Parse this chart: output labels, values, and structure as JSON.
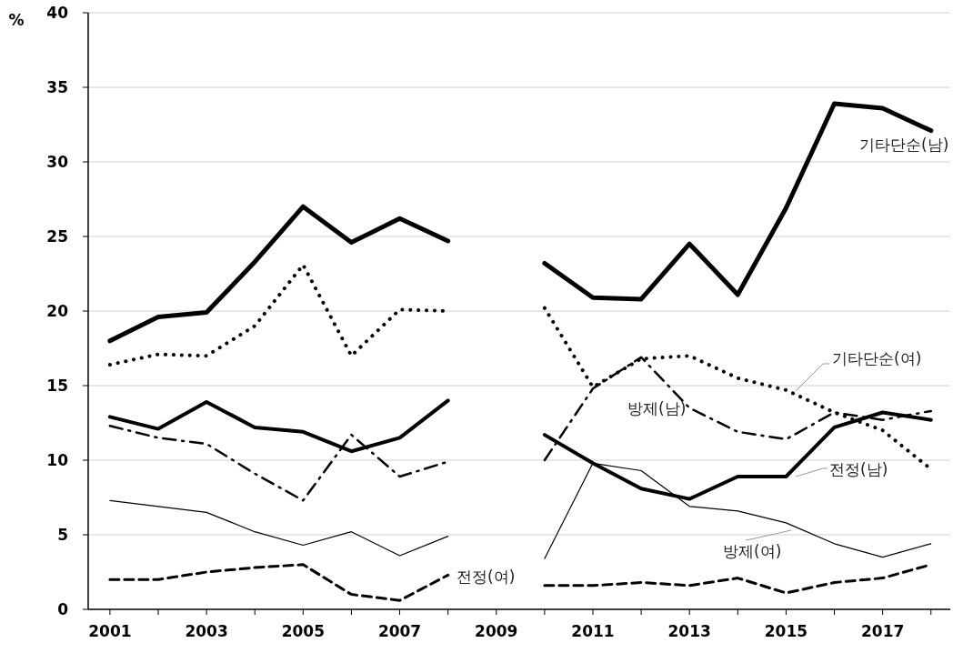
{
  "chart_data": {
    "type": "line",
    "ylabel": "%",
    "x": [
      2001,
      2002,
      2003,
      2004,
      2005,
      2006,
      2007,
      2008,
      2009,
      2010,
      2011,
      2012,
      2013,
      2014,
      2015,
      2016,
      2017,
      2018
    ],
    "xlim": [
      2000.55,
      2018.4
    ],
    "xticks": [
      2001,
      {
        "value": 2002,
        "label": null
      },
      2003,
      {
        "value": 2004,
        "label": null
      },
      2005,
      {
        "value": 2006,
        "label": null
      },
      2007,
      {
        "value": 2008,
        "label": null
      },
      2009,
      {
        "value": 2010,
        "label": null
      },
      2011,
      {
        "value": 2012,
        "label": null
      },
      2013,
      {
        "value": 2014,
        "label": null
      },
      2015,
      {
        "value": 2016,
        "label": null
      },
      2017,
      {
        "value": 2018,
        "label": null
      }
    ],
    "ylim": [
      0,
      40
    ],
    "yticks": [
      0,
      5,
      10,
      15,
      20,
      25,
      30,
      35,
      40
    ],
    "grid": "y",
    "series": [
      {
        "name": "기타단순(남)",
        "color": "#000000",
        "line_style": "solid",
        "values": [
          18.0,
          19.6,
          19.9,
          23.3,
          27.0,
          24.6,
          26.2,
          24.7,
          null,
          23.2,
          20.9,
          20.8,
          24.5,
          21.1,
          26.9,
          33.9,
          33.6,
          32.1
        ]
      },
      {
        "name": "기타단순(여)",
        "color": "#000000",
        "line_style": "dotted",
        "values": [
          16.4,
          17.1,
          17.0,
          19.0,
          23.1,
          17.0,
          20.1,
          20.0,
          null,
          20.2,
          14.9,
          16.8,
          17.0,
          15.5,
          14.7,
          13.2,
          12.0,
          9.4
        ]
      },
      {
        "name": "방제(남)",
        "color": "#000000",
        "line_style": "dashdot",
        "values": [
          12.3,
          11.5,
          11.1,
          9.1,
          7.3,
          11.7,
          8.9,
          9.9,
          null,
          10.0,
          14.8,
          16.9,
          13.5,
          11.9,
          11.4,
          13.2,
          12.7,
          13.3
        ]
      },
      {
        "name": "전정(남)",
        "color": "#000000",
        "line_style": "solid",
        "values": [
          12.9,
          12.1,
          13.9,
          12.2,
          11.9,
          10.6,
          11.5,
          14.0,
          null,
          11.7,
          9.8,
          8.1,
          7.4,
          8.9,
          8.9,
          12.2,
          13.2,
          12.7
        ]
      },
      {
        "name": "방제(여)",
        "color": "#000000",
        "line_style": "solid",
        "values": [
          7.3,
          6.9,
          6.5,
          5.2,
          4.3,
          5.2,
          3.6,
          4.9,
          null,
          3.4,
          9.8,
          9.3,
          6.9,
          6.6,
          5.8,
          4.4,
          3.5,
          4.4
        ]
      },
      {
        "name": "전정(여)",
        "color": "#000000",
        "line_style": "dashed",
        "values": [
          2.0,
          2.0,
          2.5,
          2.8,
          3.0,
          1.0,
          0.6,
          2.3,
          null,
          1.6,
          1.6,
          1.8,
          1.6,
          2.1,
          1.1,
          1.8,
          2.1,
          3.0
        ]
      }
    ]
  }
}
